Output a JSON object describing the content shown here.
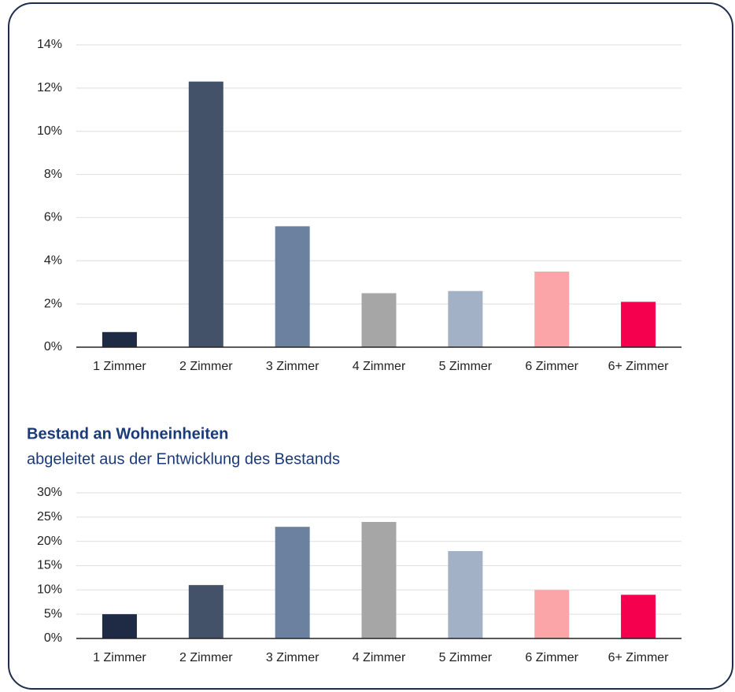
{
  "chart_data": [
    {
      "type": "bar",
      "categories": [
        "1 Zimmer",
        "2 Zimmer",
        "3 Zimmer",
        "4 Zimmer",
        "5 Zimmer",
        "6 Zimmer",
        "6+ Zimmer"
      ],
      "values": [
        0.7,
        12.3,
        5.6,
        2.5,
        2.6,
        3.5,
        2.1
      ],
      "colors": [
        "#1f2a44",
        "#435269",
        "#6c81a0",
        "#a6a6a6",
        "#a3b1c6",
        "#fca5a8",
        "#f5004e"
      ],
      "ylim": [
        0,
        14
      ],
      "yticks": [
        {
          "value": 0,
          "label": "0%"
        },
        {
          "value": 2,
          "label": "2%"
        },
        {
          "value": 4,
          "label": "4%"
        },
        {
          "value": 6,
          "label": "6%"
        },
        {
          "value": 8,
          "label": "8%"
        },
        {
          "value": 10,
          "label": "10%"
        },
        {
          "value": 12,
          "label": "12%"
        },
        {
          "value": 14,
          "label": "14%"
        }
      ],
      "grid": true
    },
    {
      "type": "bar",
      "title": "Bestand an Wohneinheiten",
      "subtitle": "abgeleitet aus der Entwicklung des Bestands",
      "categories": [
        "1 Zimmer",
        "2 Zimmer",
        "3 Zimmer",
        "4 Zimmer",
        "5 Zimmer",
        "6 Zimmer",
        "6+ Zimmer"
      ],
      "values": [
        5,
        11,
        23,
        24,
        18,
        10,
        9
      ],
      "colors": [
        "#1f2a44",
        "#435269",
        "#6c81a0",
        "#a6a6a6",
        "#a3b1c6",
        "#fca5a8",
        "#f5004e"
      ],
      "ylim": [
        0,
        30
      ],
      "yticks": [
        {
          "value": 0,
          "label": "0%"
        },
        {
          "value": 5,
          "label": "5%"
        },
        {
          "value": 10,
          "label": "10%"
        },
        {
          "value": 15,
          "label": "15%"
        },
        {
          "value": 20,
          "label": "20%"
        },
        {
          "value": 25,
          "label": "25%"
        },
        {
          "value": 30,
          "label": "30%"
        }
      ],
      "grid": true
    }
  ]
}
